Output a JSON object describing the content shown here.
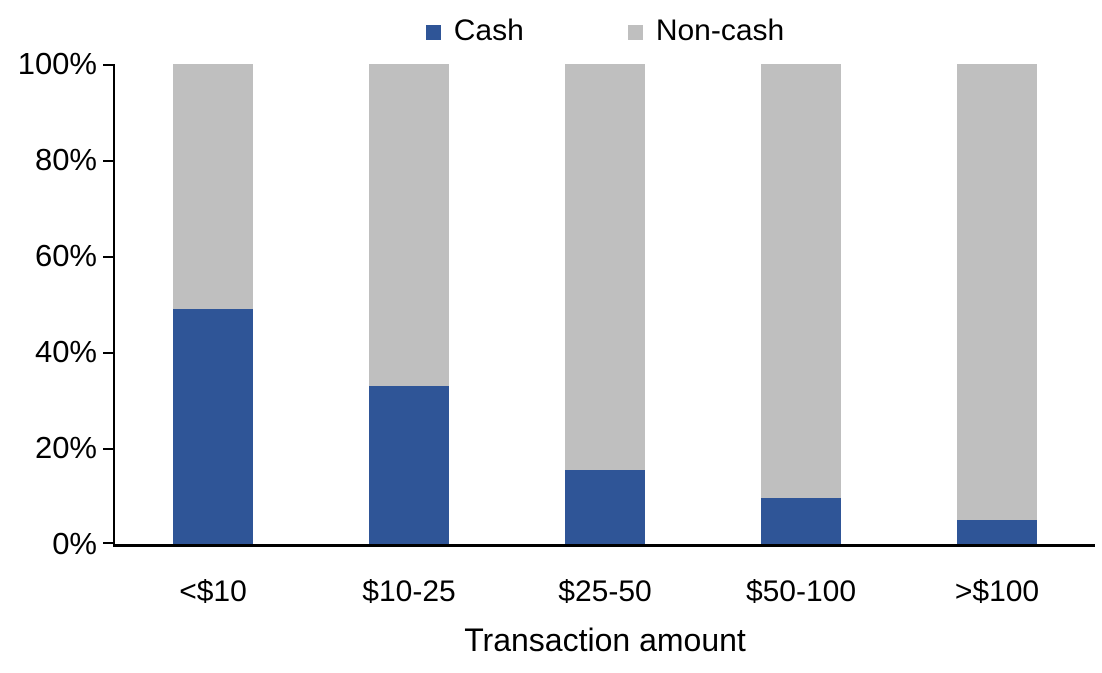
{
  "chart_data": {
    "type": "bar",
    "subtype": "stacked-100-percent",
    "title": "",
    "xlabel": "Transaction amount",
    "ylabel": "",
    "categories": [
      "<$10",
      "$10-25",
      "$25-50",
      "$50-100",
      ">$100"
    ],
    "series": [
      {
        "name": "Cash",
        "color": "#2F5597",
        "values": [
          49,
          33,
          15.5,
          9.5,
          5
        ]
      },
      {
        "name": "Non-cash",
        "color": "#BFBFBF",
        "values": [
          51,
          67,
          84.5,
          90.5,
          95
        ]
      }
    ],
    "ylim": [
      0,
      100
    ],
    "y_tick_values": [
      0,
      20,
      40,
      60,
      80,
      100
    ],
    "y_tick_labels": [
      "0%",
      "20%",
      "40%",
      "60%",
      "80%",
      "100%"
    ],
    "grid": false,
    "legend_position": "top-center",
    "axis_color": "#000000",
    "background_color": "#FFFFFF"
  },
  "legend": {
    "items": [
      {
        "label": "Cash",
        "color": "#2F5597"
      },
      {
        "label": "Non-cash",
        "color": "#BFBFBF"
      }
    ]
  }
}
